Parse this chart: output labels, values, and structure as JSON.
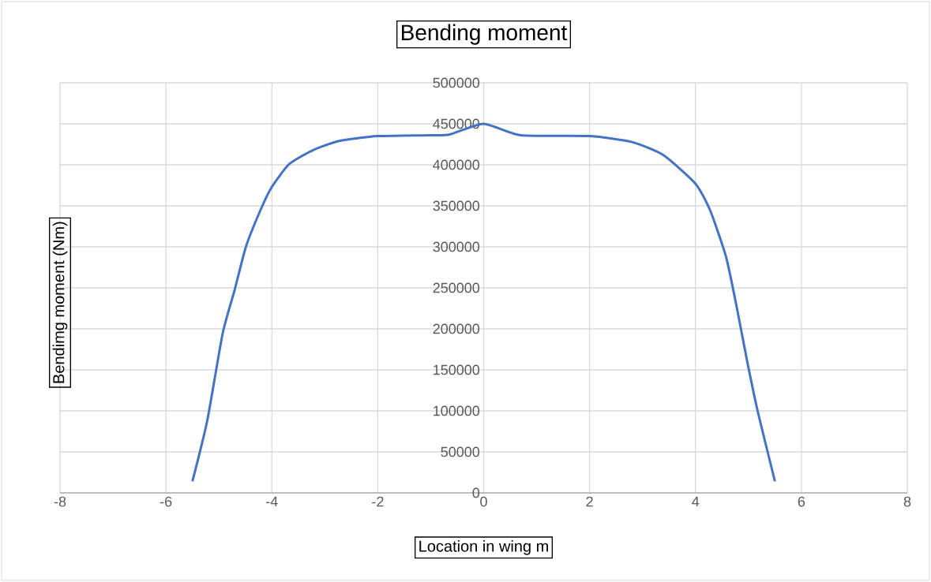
{
  "chart_data": {
    "type": "line",
    "title": "Bending moment",
    "xlabel": "Location in wing m",
    "ylabel": "Bendimg moment (Nm)",
    "x": [
      -5.5,
      -5.22,
      -4.93,
      -4.7,
      -4.49,
      -4.22,
      -4.0,
      -3.67,
      -3.22,
      -2.73,
      -2.0,
      -1.0,
      -0.64,
      0,
      0.7,
      2.0,
      2.79,
      3.39,
      4.0,
      4.28,
      4.58,
      4.78,
      4.98,
      5.18,
      5.5
    ],
    "values": [
      14000,
      88000,
      194000,
      248000,
      300000,
      344000,
      373000,
      401000,
      418000,
      429000,
      435000,
      436000,
      437000,
      450000,
      436000,
      435000,
      428000,
      412000,
      377000,
      344000,
      287000,
      226000,
      159000,
      98000,
      14000
    ],
    "color": "#4472c4",
    "xlim": [
      -8,
      8
    ],
    "ylim": [
      0,
      500000
    ],
    "xticks": [
      -8,
      -6,
      -4,
      -2,
      0,
      2,
      4,
      6,
      8
    ],
    "yticks": [
      0,
      50000,
      100000,
      150000,
      200000,
      250000,
      300000,
      350000,
      400000,
      450000,
      500000
    ],
    "grid": true
  }
}
